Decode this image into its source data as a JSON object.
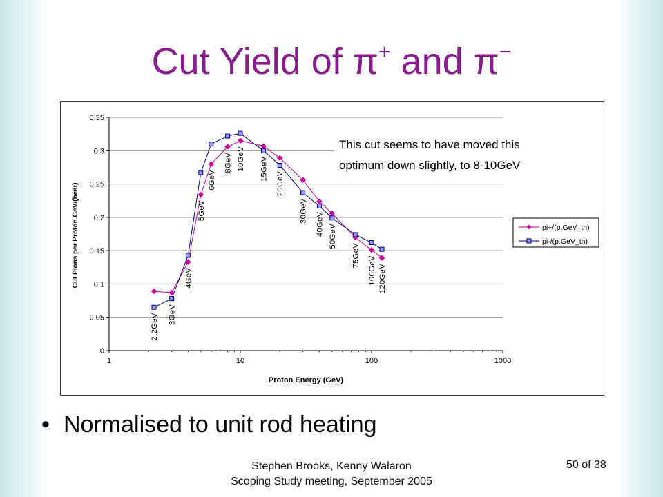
{
  "slide": {
    "title_prefix": "Cut Yield of π",
    "title_sup1": "+",
    "title_mid": " and π",
    "title_sup2": "−",
    "bullet": "Normalised to unit rod heating",
    "footer_line1": "Stephen Brooks, Kenny Walaron",
    "footer_line2": "Scoping Study meeting, September 2005",
    "page_number": "50 of 38"
  },
  "chart_data": {
    "type": "line",
    "title": "",
    "xlabel": "Proton Energy (GeV)",
    "ylabel": "Cut Pions per Proton.GeV/(heat)",
    "xscale": "log",
    "xlim": [
      1,
      1000
    ],
    "ylim": [
      0,
      0.35
    ],
    "x_ticks": [
      "1",
      "10",
      "100",
      "1000"
    ],
    "y_ticks": [
      "0",
      "0.05",
      "0.1",
      "0.15",
      "0.2",
      "0.25",
      "0.3",
      "0.35"
    ],
    "grid": "horizontal",
    "legend_position": "right",
    "x": [
      2.2,
      3,
      4,
      5,
      6,
      8,
      10,
      15,
      20,
      30,
      40,
      50,
      75,
      100,
      120
    ],
    "point_labels": [
      "2.2GeV",
      "3GeV",
      "4GeV",
      "5GeV",
      "6GeV",
      "8GeV",
      "10GeV",
      "15GeV",
      "20GeV",
      "30GeV",
      "40GeV",
      "50GeV",
      "75GeV",
      "100GeV",
      "120GeV"
    ],
    "series": [
      {
        "name": "pi+/(p.GeV_th)",
        "color": "#cc0099",
        "marker": "diamond",
        "values": [
          0.089,
          0.087,
          0.133,
          0.234,
          0.28,
          0.306,
          0.315,
          0.307,
          0.289,
          0.256,
          0.224,
          0.206,
          0.17,
          0.151,
          0.139
        ]
      },
      {
        "name": "pi-/(p.GeV_th)",
        "color": "#000080",
        "marker": "square",
        "values": [
          0.065,
          0.078,
          0.143,
          0.267,
          0.31,
          0.322,
          0.326,
          0.3,
          0.278,
          0.237,
          0.217,
          0.199,
          0.174,
          0.162,
          0.152
        ]
      }
    ],
    "annotation_line1": "This cut seems to have moved this",
    "annotation_line2": "optimum down slightly, to 8-10GeV"
  }
}
